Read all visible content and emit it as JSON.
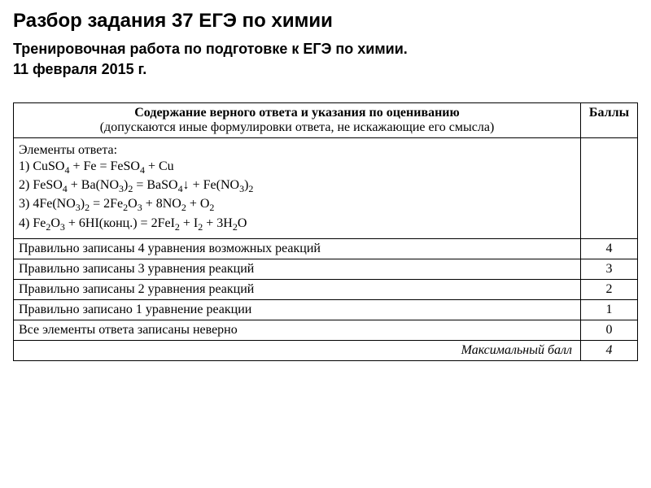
{
  "title": "Разбор задания 37 ЕГЭ по химии",
  "subtitle": "Тренировочная работа по подготовке к ЕГЭ по химии.",
  "date": "11 февраля 2015 г.",
  "table": {
    "header_main": "Содержание верного ответа и указания по оцениванию",
    "header_note": "(допускаются иные формулировки ответа, не искажающие его смысла)",
    "header_score": "Баллы",
    "answer_intro": "Элементы ответа:",
    "equations": [
      "1) CuSO₄ + Fe = FeSO₄ + Cu",
      "2) FeSO₄ + Ba(NO₃)₂ = BaSO₄↓ + Fe(NO₃)₂",
      "3) 4Fe(NO₃)₂ = 2Fe₂O₃ + 8NO₂ + O₂",
      "4) Fe₂O₃ + 6HI(конц.) = 2FeI₂ + I₂ + 3H₂O"
    ],
    "rubric": [
      {
        "text": "Правильно записаны 4 уравнения возможных реакций",
        "score": "4"
      },
      {
        "text": "Правильно записаны 3 уравнения реакций",
        "score": "3"
      },
      {
        "text": "Правильно записаны 2 уравнения реакций",
        "score": "2"
      },
      {
        "text": "Правильно записано 1 уравнение реакции",
        "score": "1"
      },
      {
        "text": "Все элементы ответа записаны неверно",
        "score": "0"
      }
    ],
    "max_label": "Максимальный балл",
    "max_score": "4"
  },
  "colors": {
    "background": "#ffffff",
    "text": "#000000",
    "border": "#000000"
  },
  "fonts": {
    "title_size": 24,
    "subtitle_size": 18,
    "table_size": 16
  }
}
